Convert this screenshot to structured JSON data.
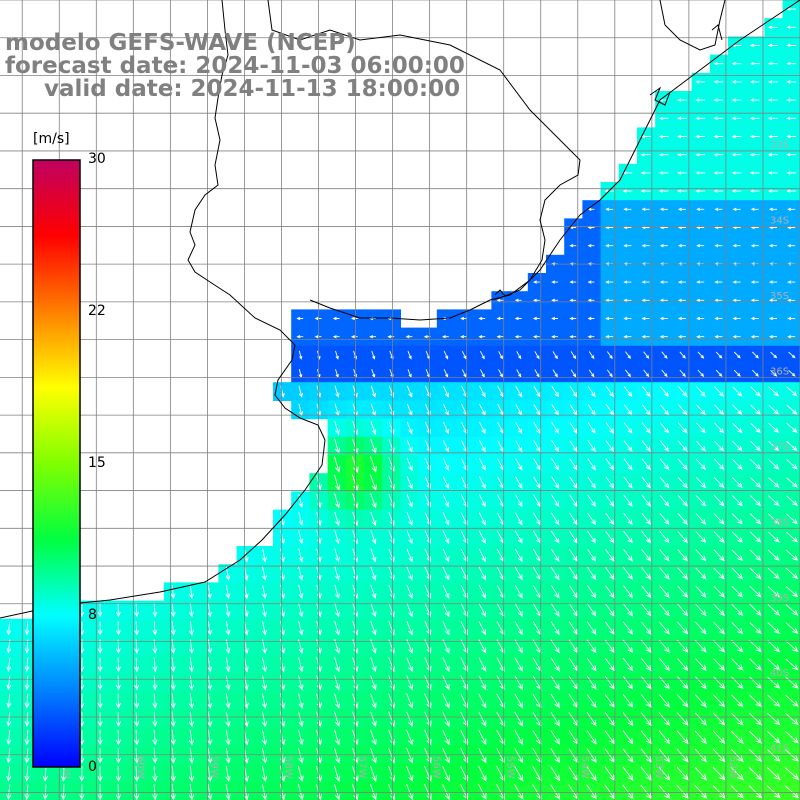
{
  "title": {
    "line1": "modelo GEFS-WAVE (NCEP)",
    "line2": "forecast date: 2024-11-03 06:00:00",
    "line3": "valid date: 2024-11-13 18:00:00"
  },
  "colorbar": {
    "unit": "[m/s]",
    "ticks": [
      "30",
      "22",
      "15",
      "8",
      "0"
    ],
    "tick_values": [
      30,
      22,
      15,
      8,
      0
    ],
    "range": [
      0,
      30
    ],
    "colors": [
      "#0000ff",
      "#0080ff",
      "#00ffff",
      "#00ff40",
      "#80ff00",
      "#ffff00",
      "#ff8000",
      "#ff0000",
      "#c00060"
    ]
  },
  "map": {
    "lat_labels": [
      "33S",
      "34S",
      "35S",
      "36S",
      "37S",
      "38S",
      "39S",
      "40S",
      "41S"
    ],
    "lon_labels": [
      "61W",
      "60W",
      "59W",
      "58W",
      "57W",
      "56W",
      "55W",
      "54W",
      "53W",
      "52W",
      "51W"
    ],
    "lat_range": [
      -41.6,
      -31.0
    ],
    "lon_range": [
      -61.8,
      -51.0
    ],
    "land_color": "#ffffff",
    "grid_color": "#808080",
    "coast_color": "#000000"
  }
}
